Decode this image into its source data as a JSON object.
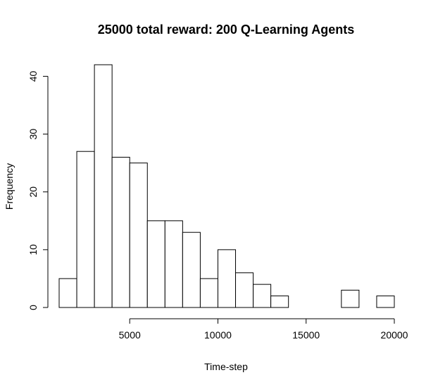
{
  "chart_data": {
    "type": "bar",
    "title": "25000 total reward: 200 Q-Learning Agents",
    "xlabel": "Time-step",
    "ylabel": "Frequency",
    "bin_edges": [
      1000,
      2000,
      3000,
      4000,
      5000,
      6000,
      7000,
      8000,
      9000,
      10000,
      11000,
      12000,
      13000,
      14000,
      15000,
      16000,
      17000,
      18000,
      19000,
      20000
    ],
    "values": [
      5,
      27,
      42,
      26,
      25,
      15,
      15,
      13,
      5,
      10,
      6,
      4,
      2,
      0,
      0,
      0,
      3,
      0,
      2
    ],
    "xlim": [
      1000,
      20000
    ],
    "ylim": [
      0,
      42
    ],
    "x_ticks": [
      5000,
      10000,
      15000,
      20000
    ],
    "y_ticks": [
      0,
      10,
      20,
      30,
      40
    ],
    "grid": false
  }
}
